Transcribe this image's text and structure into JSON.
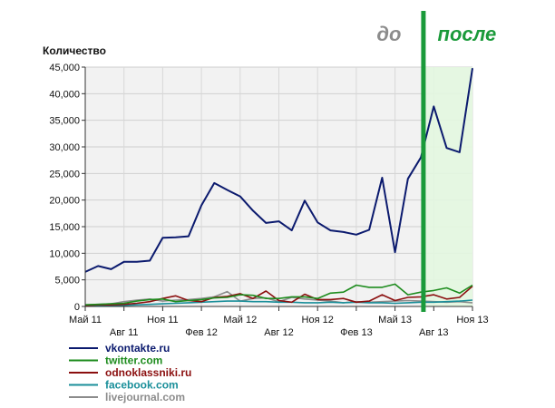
{
  "chart_data": {
    "type": "line",
    "ylabel": "Количество",
    "ylim": [
      0,
      45000
    ],
    "y_ticks": [
      "0",
      "5,000",
      "10,000",
      "15,000",
      "20,000",
      "25,000",
      "30,000",
      "35,000",
      "40,000",
      "45,000"
    ],
    "x_ticks_upper": [
      "Май 11",
      "Ноя 11",
      "Май 12",
      "Ноя 12",
      "Май 13",
      "Ноя 13"
    ],
    "x_ticks_lower": [
      "Авг 11",
      "Фев 12",
      "Авг 12",
      "Фев 13",
      "Авг 13"
    ],
    "x_count": 31,
    "grid": true,
    "legend_position": "bottom-left",
    "annotations": {
      "before": "до",
      "after": "после",
      "split_index": 26.2,
      "before_color": "#8c8c8c",
      "after_color": "#1a9a3a",
      "line_color": "#1a9a3a",
      "shade_color": "#e3f7e0"
    },
    "series": [
      {
        "name": "vkontakte.ru",
        "color": "#0b1a6e",
        "values": [
          6500,
          7600,
          7000,
          8400,
          8400,
          8600,
          12900,
          13000,
          13200,
          19000,
          23200,
          21900,
          20700,
          18000,
          15700,
          16000,
          14300,
          19900,
          15800,
          14300,
          14000,
          13500,
          14400,
          24200,
          10200,
          24000,
          28000,
          37600,
          29800,
          29000,
          44800
        ]
      },
      {
        "name": "twitter.com",
        "color": "#1e8c1e",
        "values": [
          300,
          400,
          500,
          600,
          1000,
          1300,
          1400,
          900,
          1100,
          1300,
          1600,
          1700,
          2200,
          2100,
          1500,
          1500,
          1800,
          1800,
          1500,
          2500,
          2700,
          4000,
          3600,
          3600,
          4200,
          2200,
          2700,
          3000,
          3500,
          2500,
          4000
        ]
      },
      {
        "name": "odnoklassniki.ru",
        "color": "#8b0f0f",
        "values": [
          200,
          300,
          300,
          400,
          600,
          900,
          1500,
          2000,
          1100,
          900,
          1700,
          1900,
          2400,
          1500,
          2900,
          1100,
          800,
          2300,
          1300,
          1300,
          1500,
          800,
          1000,
          2200,
          1100,
          1700,
          1800,
          2200,
          1400,
          1700,
          3800
        ]
      },
      {
        "name": "facebook.com",
        "color": "#1a8f9a",
        "values": [
          100,
          150,
          200,
          200,
          300,
          400,
          500,
          600,
          700,
          800,
          900,
          1000,
          1000,
          900,
          900,
          800,
          800,
          700,
          700,
          800,
          700,
          800,
          700,
          700,
          600,
          700,
          800,
          800,
          900,
          1000,
          1200
        ]
      },
      {
        "name": "livejournal.com",
        "color": "#8c8c8c",
        "values": [
          300,
          400,
          500,
          900,
          1200,
          1400,
          1000,
          1200,
          1300,
          1500,
          1800,
          2800,
          1000,
          1500,
          1600,
          900,
          1700,
          1400,
          1200,
          1000,
          700,
          900,
          800,
          900,
          1000,
          1100,
          1000,
          900,
          800,
          900,
          700
        ]
      }
    ]
  }
}
